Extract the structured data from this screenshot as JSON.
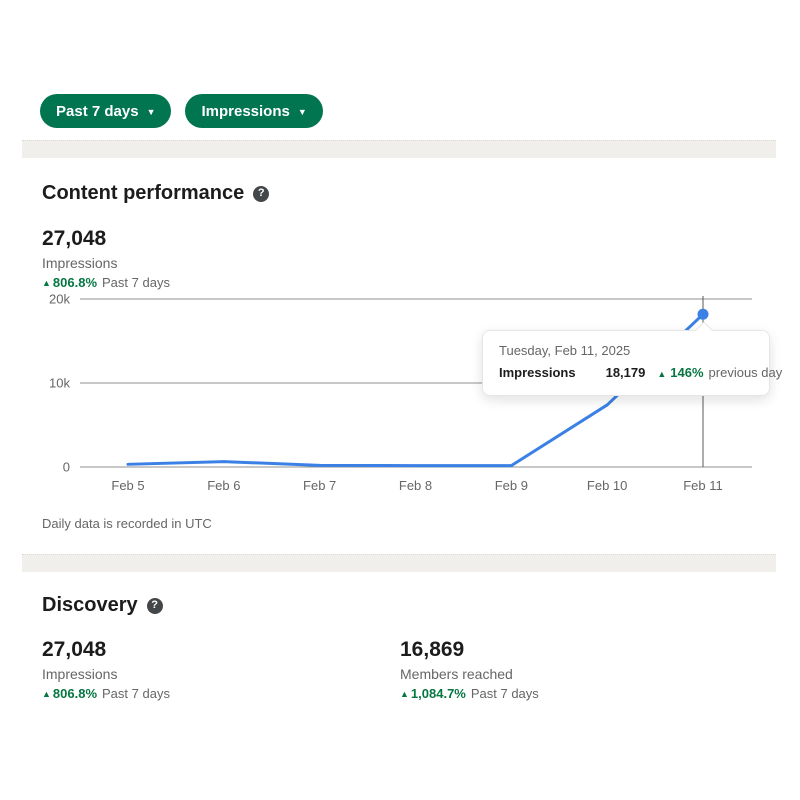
{
  "icons": {
    "caret_down": "▼",
    "up_arrow": "▲",
    "help_glyph": "?"
  },
  "colors": {
    "pill_green": "#01754f",
    "trend_green": "#057642",
    "line_blue": "#3b80e5",
    "grid_gray": "#8f8f8f",
    "crosshair_gray": "#55585c",
    "band_gray": "#f1efeb"
  },
  "filters": {
    "date_range_label": "Past 7 days",
    "metric_label": "Impressions"
  },
  "content_performance": {
    "title": "Content performance",
    "summary": {
      "value": "27,048",
      "label": "Impressions",
      "change": "806.8%",
      "period": "Past 7 days"
    },
    "footnote": "Daily data is recorded in UTC"
  },
  "tooltip": {
    "date": "Tuesday, Feb 11, 2025",
    "metric": "Impressions",
    "value": "18,179",
    "change": "146%",
    "comparison": "previous day"
  },
  "discovery": {
    "title": "Discovery",
    "stats": [
      {
        "value": "27,048",
        "label": "Impressions",
        "change": "806.8%",
        "period": "Past 7 days"
      },
      {
        "value": "16,869",
        "label": "Members reached",
        "change": "1,084.7%",
        "period": "Past 7 days"
      }
    ]
  },
  "chart_data": {
    "type": "line",
    "title": "Content performance — Impressions, past 7 days",
    "x": [
      "Feb 5",
      "Feb 6",
      "Feb 7",
      "Feb 8",
      "Feb 9",
      "Feb 10",
      "Feb 11"
    ],
    "values": [
      320,
      640,
      200,
      160,
      160,
      7389,
      18179
    ],
    "ylim": [
      0,
      20000
    ],
    "yticks": [
      {
        "value": 0,
        "label": "0"
      },
      {
        "value": 10000,
        "label": "10k"
      },
      {
        "value": 20000,
        "label": "20k"
      }
    ],
    "grid": true,
    "highlight_index": 6,
    "highlight_value_label": "18,179",
    "line_color": "#3b80e5"
  }
}
